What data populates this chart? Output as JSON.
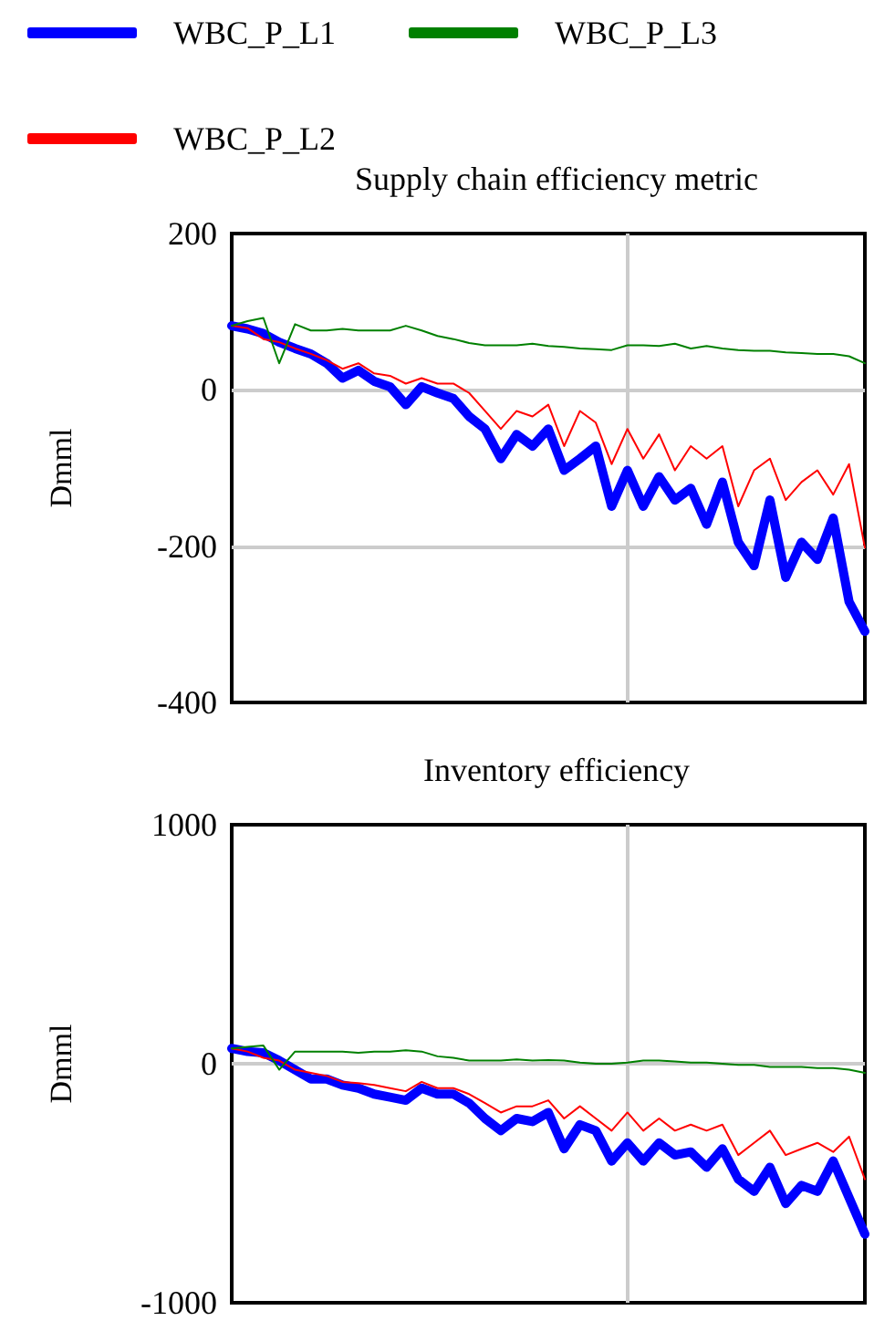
{
  "chart_data": [
    {
      "type": "line",
      "title": "Supply chain efficiency metric",
      "ylabel": "Dmml",
      "categories": [
        null,
        null,
        null,
        null,
        null,
        null,
        null,
        null,
        null,
        null,
        null,
        null,
        null,
        null,
        null,
        null,
        null,
        null,
        null,
        null,
        null,
        null,
        null,
        null,
        null,
        null,
        null,
        null,
        null,
        null,
        null,
        null,
        null,
        null,
        null,
        null,
        null,
        null,
        null,
        null,
        null
      ],
      "series": [
        {
          "name": "WBC_P_L1",
          "color": "#0000ff",
          "values": [
            82,
            78,
            72,
            61,
            53,
            46,
            34,
            15,
            25,
            11,
            4,
            -19,
            4,
            -4,
            -11,
            -34,
            -50,
            -88,
            -57,
            -72,
            -50,
            -103,
            -88,
            -72,
            -149,
            -103,
            -149,
            -111,
            -141,
            -126,
            -172,
            -118,
            -195,
            -225,
            -141,
            -240,
            -195,
            -217,
            -164,
            -271,
            -309
          ]
        },
        {
          "name": "WBC_P_L2",
          "color": "#ff0000",
          "values": [
            82,
            79,
            65,
            61,
            53,
            46,
            38,
            27,
            34,
            21,
            18,
            8,
            15,
            8,
            8,
            -4,
            -27,
            -50,
            -27,
            -34,
            -19,
            -72,
            -27,
            -42,
            -95,
            -50,
            -88,
            -57,
            -103,
            -72,
            -88,
            -72,
            -149,
            -103,
            -88,
            -141,
            -118,
            -103,
            -134,
            -95,
            -202
          ]
        },
        {
          "name": "WBC_P_L3",
          "color": "#008000",
          "values": [
            82,
            88,
            92,
            34,
            84,
            76,
            76,
            78,
            76,
            76,
            76,
            82,
            76,
            69,
            65,
            60,
            57,
            57,
            57,
            59,
            56,
            55,
            53,
            52,
            51,
            57,
            57,
            56,
            59,
            53,
            56,
            53,
            51,
            50,
            50,
            48,
            47,
            46,
            46,
            43,
            34
          ]
        }
      ],
      "ylim": [
        -400,
        200
      ],
      "yticks": [
        -400,
        -200,
        0,
        200
      ],
      "grid": true,
      "legend": "top",
      "tick_labels": "y"
    },
    {
      "type": "line",
      "title": "Inventory efficiency",
      "ylabel": "Dmml",
      "categories": [
        null,
        null,
        null,
        null,
        null,
        null,
        null,
        null,
        null,
        null,
        null,
        null,
        null,
        null,
        null,
        null,
        null,
        null,
        null,
        null,
        null,
        null,
        null,
        null,
        null,
        null,
        null,
        null,
        null,
        null,
        null,
        null,
        null,
        null,
        null,
        null,
        null,
        null,
        null,
        null,
        null
      ],
      "series": [
        {
          "color": "#0000ff",
          "values": [
            64,
            51,
            46,
            13,
            -25,
            -64,
            -64,
            -89,
            -102,
            -127,
            -140,
            -153,
            -102,
            -127,
            -127,
            -165,
            -229,
            -280,
            -229,
            -242,
            -204,
            -356,
            -255,
            -280,
            -407,
            -331,
            -407,
            -331,
            -382,
            -369,
            -433,
            -356,
            -483,
            -534,
            -433,
            -585,
            -509,
            -534,
            -407,
            -560,
            -713
          ]
        },
        {
          "color": "#ff0000",
          "values": [
            64,
            51,
            25,
            13,
            -25,
            -38,
            -51,
            -76,
            -81,
            -89,
            -102,
            -115,
            -76,
            -102,
            -102,
            -127,
            -165,
            -204,
            -178,
            -178,
            -153,
            -229,
            -178,
            -229,
            -280,
            -204,
            -280,
            -229,
            -280,
            -255,
            -280,
            -255,
            -382,
            -331,
            -280,
            -382,
            -356,
            -331,
            -369,
            -305,
            -483
          ]
        },
        {
          "color": "#008000",
          "values": [
            64,
            71,
            76,
            -25,
            51,
            51,
            51,
            51,
            46,
            51,
            51,
            56,
            51,
            31,
            25,
            13,
            13,
            13,
            18,
            13,
            15,
            13,
            5,
            0,
            0,
            5,
            13,
            13,
            10,
            5,
            5,
            0,
            -5,
            -5,
            -13,
            -13,
            -13,
            -18,
            -18,
            -25,
            -38
          ]
        }
      ],
      "ylim": [
        -1000,
        1000
      ],
      "yticks": [
        -1000,
        0,
        1000
      ],
      "grid": true,
      "legend": false,
      "tick_labels": "y"
    }
  ]
}
